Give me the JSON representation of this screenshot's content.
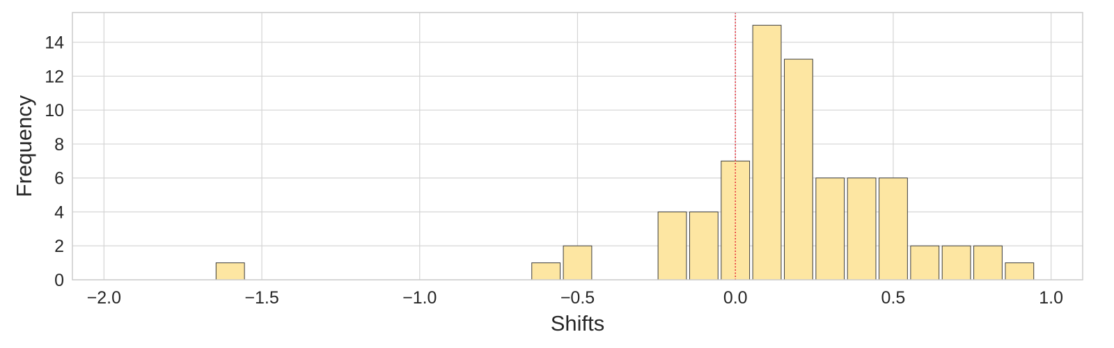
{
  "chart_data": {
    "type": "bar",
    "subtype": "histogram",
    "title": "",
    "xlabel": "Shifts",
    "ylabel": "Frequency",
    "xlim": [
      -2.1,
      1.1
    ],
    "ylim": [
      0,
      15.75
    ],
    "xticks": [
      -2.0,
      -1.5,
      -1.0,
      -0.5,
      0.0,
      0.5,
      1.0
    ],
    "xtick_labels": [
      "−2.0",
      "−1.5",
      "−1.0",
      "−0.5",
      "0.0",
      "0.5",
      "1.0"
    ],
    "yticks": [
      0,
      2,
      4,
      6,
      8,
      10,
      12,
      14
    ],
    "ytick_labels": [
      "0",
      "2",
      "4",
      "6",
      "8",
      "10",
      "12",
      "14"
    ],
    "bin_width": 0.1,
    "bins": [
      {
        "x0": -1.65,
        "x1": -1.55,
        "count": 1
      },
      {
        "x0": -0.65,
        "x1": -0.55,
        "count": 1
      },
      {
        "x0": -0.55,
        "x1": -0.45,
        "count": 2
      },
      {
        "x0": -0.25,
        "x1": -0.15,
        "count": 4
      },
      {
        "x0": -0.15,
        "x1": -0.05,
        "count": 4
      },
      {
        "x0": -0.05,
        "x1": 0.05,
        "count": 7
      },
      {
        "x0": 0.05,
        "x1": 0.15,
        "count": 15
      },
      {
        "x0": 0.15,
        "x1": 0.25,
        "count": 13
      },
      {
        "x0": 0.25,
        "x1": 0.35,
        "count": 6
      },
      {
        "x0": 0.35,
        "x1": 0.45,
        "count": 6
      },
      {
        "x0": 0.45,
        "x1": 0.55,
        "count": 6
      },
      {
        "x0": 0.55,
        "x1": 0.65,
        "count": 2
      },
      {
        "x0": 0.65,
        "x1": 0.75,
        "count": 2
      },
      {
        "x0": 0.75,
        "x1": 0.85,
        "count": 2
      },
      {
        "x0": 0.85,
        "x1": 0.95,
        "count": 1
      }
    ],
    "reference_line": {
      "x": 0.0,
      "style": "dotted",
      "color": "#e8303a"
    },
    "bar_color": "#fde6a2",
    "bar_edge_color": "#3a3a3a",
    "grid": true,
    "legend": "none"
  }
}
